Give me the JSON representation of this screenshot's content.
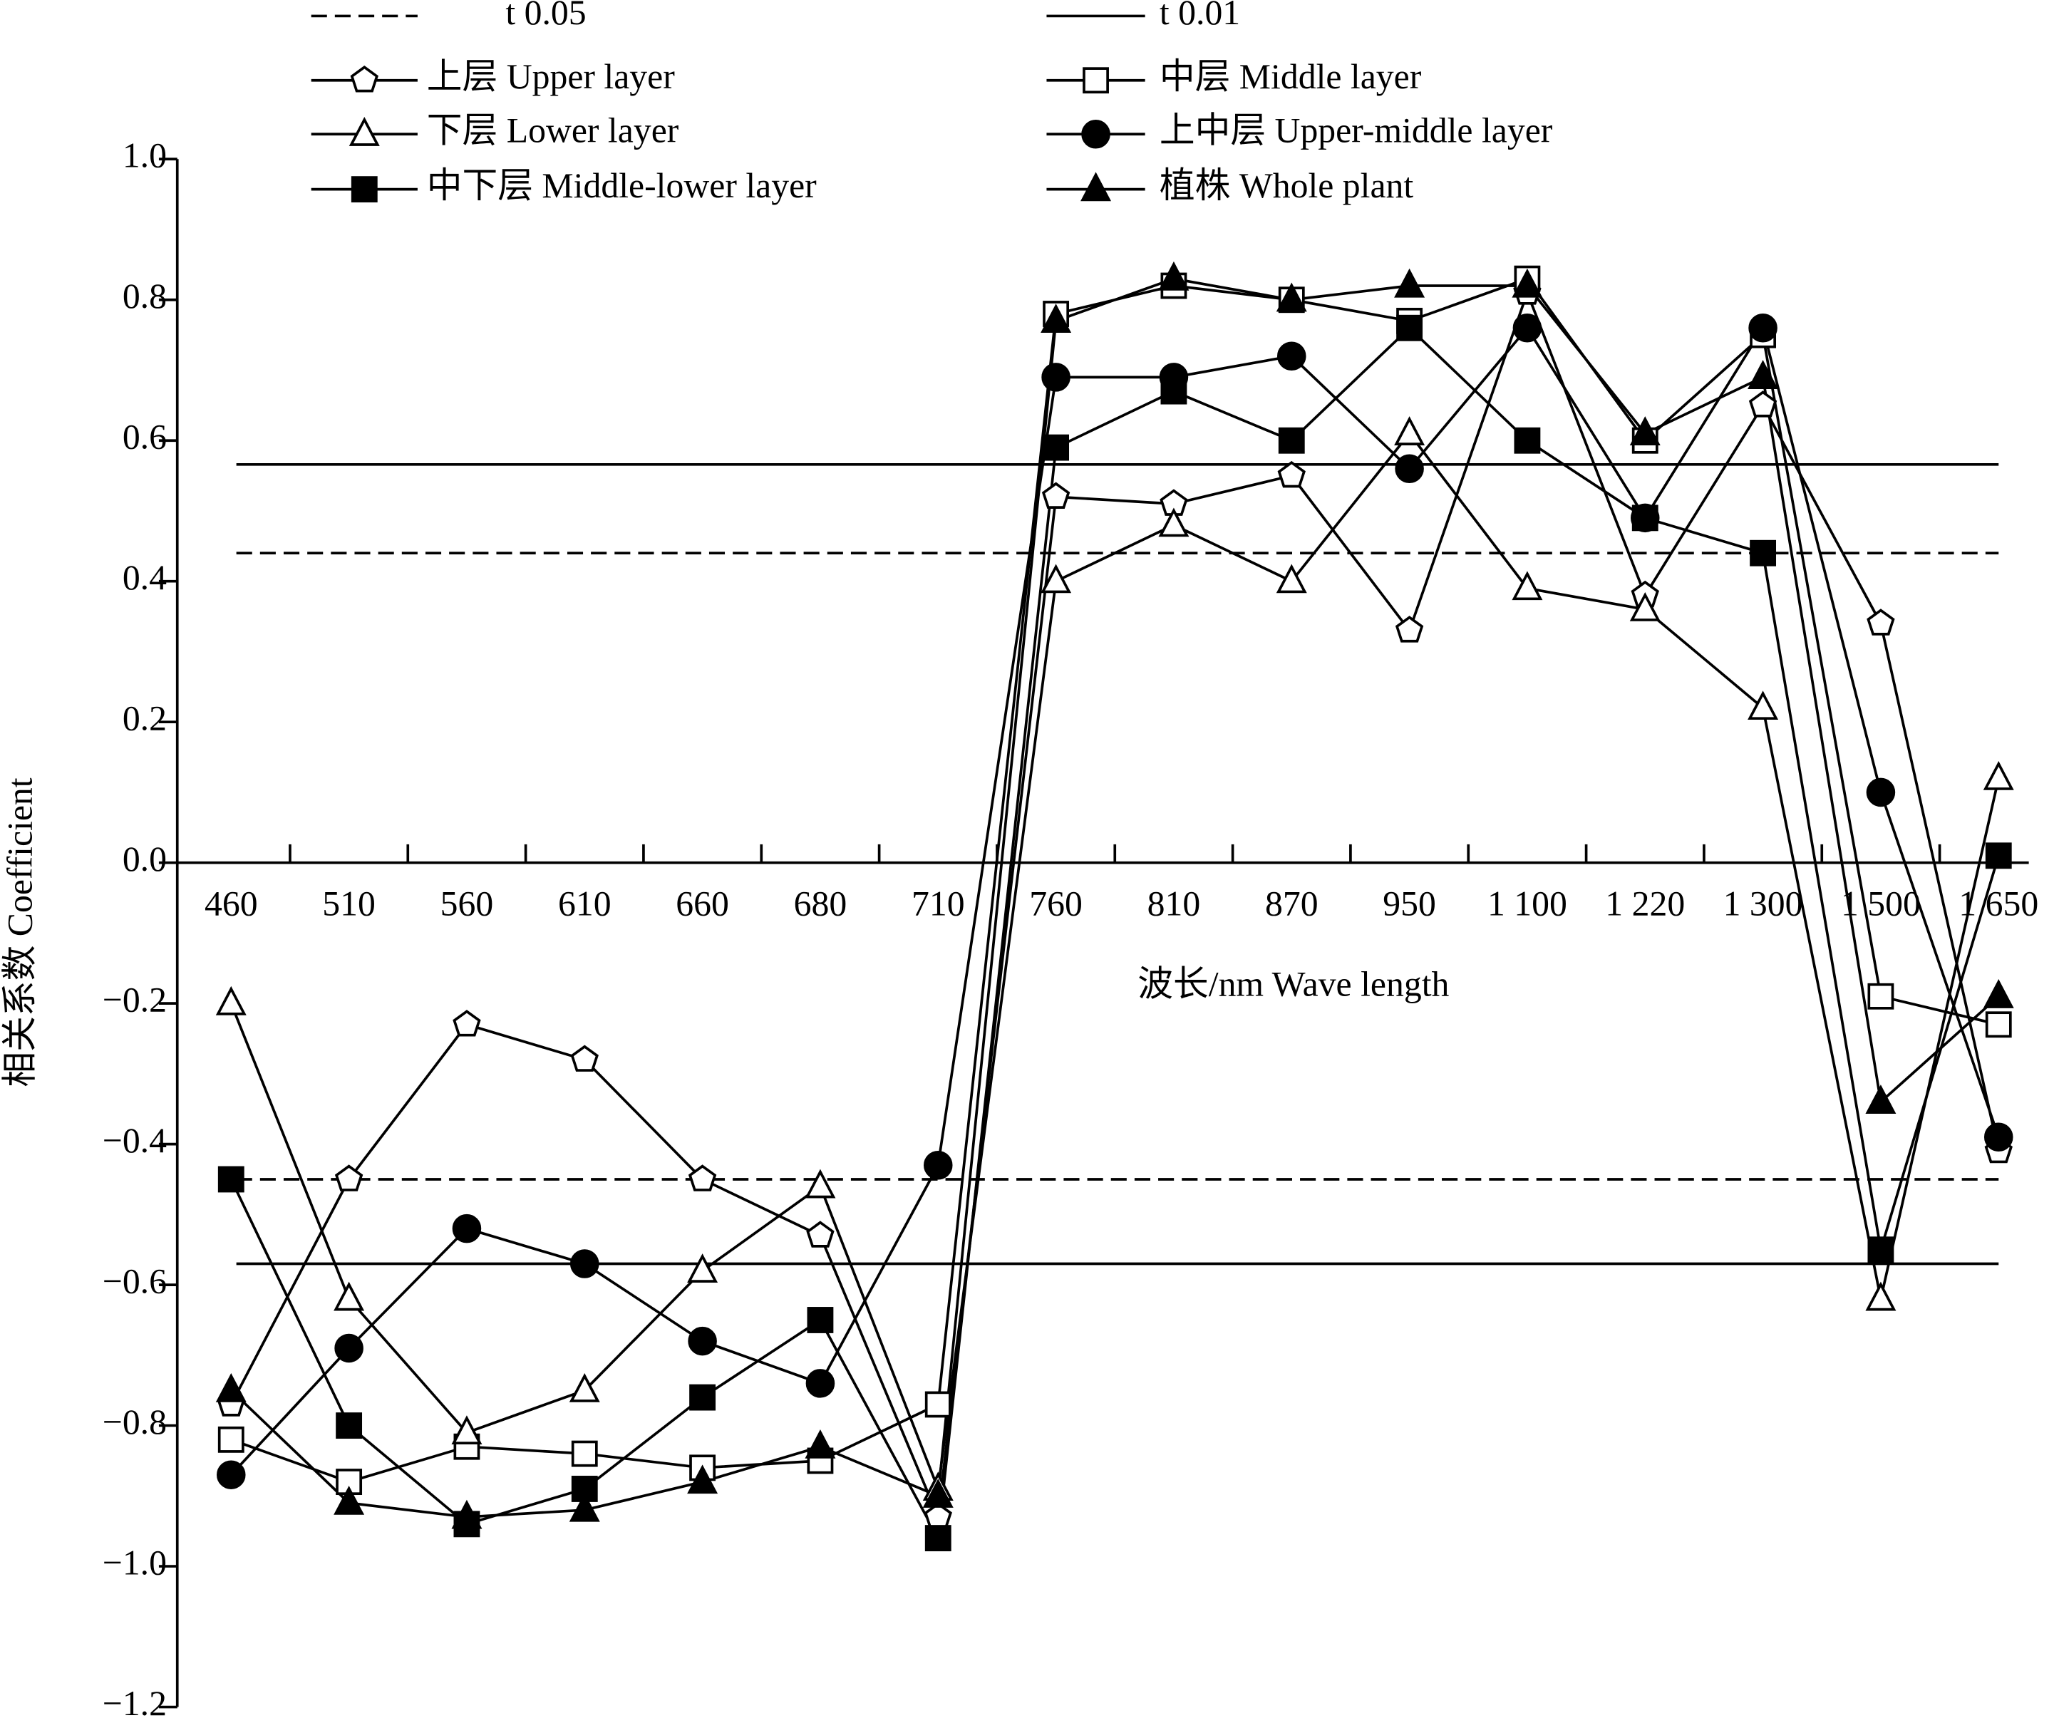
{
  "chart_data": {
    "type": "line",
    "x_label": "波长/nm Wave length",
    "y_label": "相关系数 Coefficient",
    "categories": [
      "460",
      "510",
      "560",
      "610",
      "660",
      "680",
      "710",
      "760",
      "810",
      "870",
      "950",
      "1 100",
      "1 220",
      "1 300",
      "1 500",
      "1 650"
    ],
    "ylim": [
      -1.2,
      1.0
    ],
    "yticks": [
      {
        "value": -1.2,
        "label": "−1.2"
      },
      {
        "value": -1.0,
        "label": "−1.0"
      },
      {
        "value": -0.8,
        "label": "−0.8"
      },
      {
        "value": -0.6,
        "label": "−0.6"
      },
      {
        "value": -0.4,
        "label": "−0.4"
      },
      {
        "value": -0.2,
        "label": "−0.2"
      },
      {
        "value": 0,
        "label": "0.0"
      },
      0.2,
      0.4,
      0.6,
      0.8,
      {
        "value": 1.0,
        "label": "1.0"
      }
    ],
    "reference_lines": [
      {
        "name": "t 0.05",
        "style": "dashed",
        "color": "#000000",
        "values": [
          0.44,
          -0.45
        ]
      },
      {
        "name": "t 0.01",
        "style": "solid",
        "color": "#000000",
        "values": [
          0.566,
          -0.57
        ]
      }
    ],
    "series": [
      {
        "name": "上层 Upper layer",
        "marker": "pentagon-open",
        "color": "#000000",
        "values": [
          -0.77,
          -0.45,
          -0.23,
          -0.28,
          -0.45,
          -0.53,
          -0.93,
          0.52,
          0.51,
          0.55,
          0.33,
          0.81,
          0.38,
          0.65,
          0.34,
          -0.41
        ]
      },
      {
        "name": "中层 Middle layer",
        "marker": "square-open",
        "color": "#000000",
        "values": [
          -0.82,
          -0.88,
          -0.83,
          -0.84,
          -0.86,
          -0.85,
          -0.77,
          0.78,
          0.82,
          0.8,
          0.77,
          0.83,
          0.6,
          0.75,
          -0.19,
          -0.23
        ]
      },
      {
        "name": "下层 Lower layer",
        "marker": "triangle-open",
        "color": "#000000",
        "values": [
          -0.2,
          -0.62,
          -0.81,
          -0.75,
          -0.58,
          -0.46,
          -0.89,
          0.4,
          0.48,
          0.4,
          0.61,
          0.39,
          0.36,
          0.22,
          -0.62,
          0.12
        ]
      },
      {
        "name": "上中层 Upper-middle layer",
        "marker": "circle-filled",
        "color": "#000000",
        "values": [
          -0.87,
          -0.69,
          -0.52,
          -0.57,
          -0.68,
          -0.74,
          -0.43,
          0.69,
          0.69,
          0.72,
          0.56,
          0.76,
          0.49,
          0.76,
          0.1,
          -0.39
        ]
      },
      {
        "name": "中下层 Middle-lower layer",
        "marker": "square-filled",
        "color": "#000000",
        "values": [
          -0.45,
          -0.8,
          -0.94,
          -0.89,
          -0.76,
          -0.65,
          -0.96,
          0.59,
          0.67,
          0.6,
          0.76,
          0.6,
          0.49,
          0.44,
          -0.55,
          0.01
        ]
      },
      {
        "name": "植株 Whole plant",
        "marker": "triangle-filled",
        "color": "#000000",
        "values": [
          -0.75,
          -0.91,
          -0.93,
          -0.92,
          -0.88,
          -0.83,
          -0.9,
          0.77,
          0.83,
          0.8,
          0.82,
          0.82,
          0.61,
          0.69,
          -0.34,
          -0.19
        ]
      }
    ]
  }
}
